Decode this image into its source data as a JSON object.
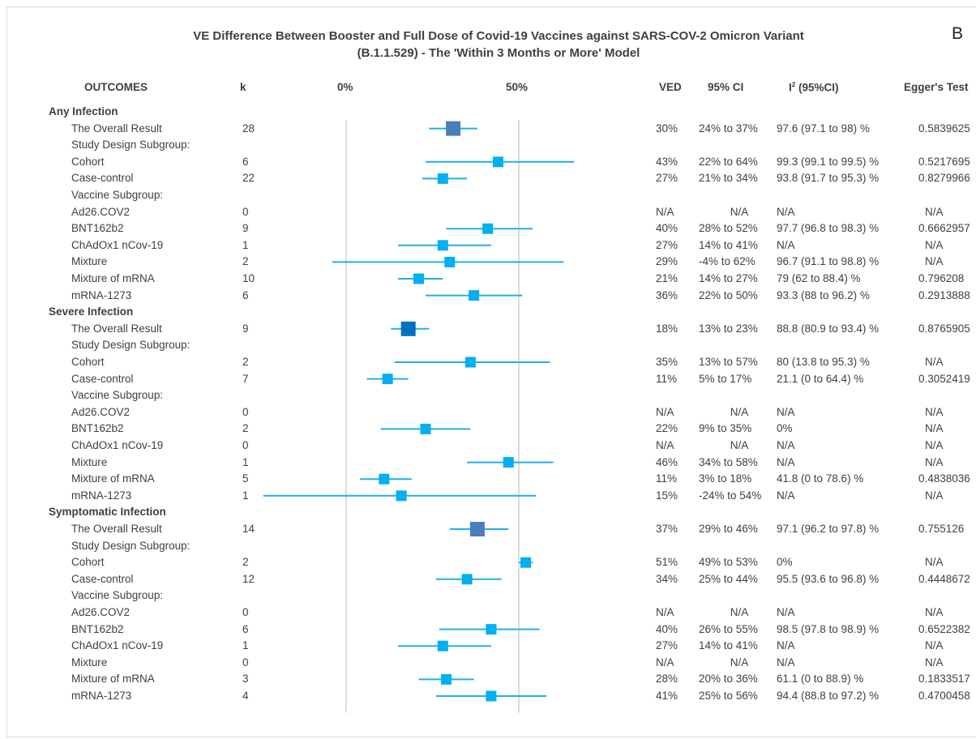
{
  "title_line1": "VE Difference Between Booster and Full Dose of Covid-19 Vaccines against SARS-COV-2 Omicron Variant",
  "title_line2": "(B.1.1.529) - The 'Within 3 Months or More' Model",
  "panel_letter": "B",
  "headers": {
    "outcomes": "OUTCOMES",
    "k": "k",
    "tick0": "0%",
    "tick50": "50%",
    "ved": "VED",
    "ci": "95% CI",
    "i2_prefix": "I",
    "i2_sup": "2",
    "i2_suffix": " (95%CI)",
    "egger": "Egger's Test"
  },
  "colors": {
    "overall_any": "#4a7ebb",
    "overall_severe": "#0070c0",
    "overall_symptomatic": "#4a7ebb",
    "subgroup": "#00b0f0",
    "line": "#1fb0ec",
    "refline": "#d0d0d0"
  },
  "chart_data": {
    "type": "forest",
    "xlim": [
      -48,
      60
    ],
    "reference_lines": [
      0,
      50
    ],
    "rows": [
      {
        "type": "group",
        "label": "Any Infection"
      },
      {
        "type": "item",
        "label": "The Overall Result",
        "k": "28",
        "est": 31,
        "lo": 24,
        "hi": 38,
        "ved": "30%",
        "ci": "24% to 37%",
        "i2": "97.6 (97.1 to 98) %",
        "egger": "0.5839625",
        "overall": "any"
      },
      {
        "type": "sub",
        "label": "Study Design Subgroup:"
      },
      {
        "type": "item",
        "label": "Cohort",
        "k": "6",
        "est": 44,
        "lo": 23,
        "hi": 66,
        "ved": "43%",
        "ci": "22% to 64%",
        "i2": "99.3 (99.1 to 99.5) %",
        "egger": "0.5217695"
      },
      {
        "type": "item",
        "label": "Case-control",
        "k": "22",
        "est": 28,
        "lo": 22,
        "hi": 35,
        "ved": "27%",
        "ci": "21% to 34%",
        "i2": "93.8 (91.7 to 95.3) %",
        "egger": "0.8279966"
      },
      {
        "type": "sub",
        "label": "Vaccine Subgroup:"
      },
      {
        "type": "item",
        "label": "Ad26.COV2",
        "k": "0",
        "ved": "N/A",
        "ci": "N/A",
        "i2": "N/A",
        "egger": "N/A"
      },
      {
        "type": "item",
        "label": "BNT162b2",
        "k": "9",
        "est": 41,
        "lo": 29,
        "hi": 54,
        "ved": "40%",
        "ci": "28% to 52%",
        "i2": "97.7 (96.8 to 98.3) %",
        "egger": "0.6662957"
      },
      {
        "type": "item",
        "label": "ChAdOx1 nCov-19",
        "k": "1",
        "est": 28,
        "lo": 15,
        "hi": 42,
        "ved": "27%",
        "ci": "14% to 41%",
        "i2": "N/A",
        "egger": "N/A"
      },
      {
        "type": "item",
        "label": "Mixture",
        "k": "2",
        "est": 30,
        "lo": -4,
        "hi": 63,
        "ved": "29%",
        "ci": "-4% to 62%",
        "i2": "96.7 (91.1 to 98.8) %",
        "egger": "N/A"
      },
      {
        "type": "item",
        "label": "Mixture of mRNA",
        "k": "10",
        "est": 21,
        "lo": 15,
        "hi": 28,
        "ved": "21%",
        "ci": "14% to 27%",
        "i2": "79 (62 to 88.4) %",
        "egger": "0.796208"
      },
      {
        "type": "item",
        "label": "mRNA-1273",
        "k": "6",
        "est": 37,
        "lo": 23,
        "hi": 51,
        "ved": "36%",
        "ci": "22% to 50%",
        "i2": "93.3 (88 to 96.2) %",
        "egger": "0.2913888"
      },
      {
        "type": "group",
        "label": "Severe Infection"
      },
      {
        "type": "item",
        "label": "The Overall Result",
        "k": "9",
        "est": 18,
        "lo": 13,
        "hi": 24,
        "ved": "18%",
        "ci": "13% to 23%",
        "i2": "88.8 (80.9 to 93.4) %",
        "egger": "0.8765905",
        "overall": "severe"
      },
      {
        "type": "sub",
        "label": "Study Design Subgroup:"
      },
      {
        "type": "item",
        "label": "Cohort",
        "k": "2",
        "est": 36,
        "lo": 14,
        "hi": 59,
        "ved": "35%",
        "ci": "13% to 57%",
        "i2": "80 (13.8 to 95.3) %",
        "egger": "N/A"
      },
      {
        "type": "item",
        "label": "Case-control",
        "k": "7",
        "est": 12,
        "lo": 6,
        "hi": 18,
        "ved": "11%",
        "ci": "5% to 17%",
        "i2": "21.1 (0 to 64.4) %",
        "egger": "0.3052419"
      },
      {
        "type": "sub",
        "label": "Vaccine Subgroup:"
      },
      {
        "type": "item",
        "label": "Ad26.COV2",
        "k": "0",
        "ved": "N/A",
        "ci": "N/A",
        "i2": "N/A",
        "egger": "N/A"
      },
      {
        "type": "item",
        "label": "BNT162b2",
        "k": "2",
        "est": 23,
        "lo": 10,
        "hi": 36,
        "ved": "22%",
        "ci": "9% to 35%",
        "i2": "0%",
        "egger": "N/A"
      },
      {
        "type": "item",
        "label": "ChAdOx1 nCov-19",
        "k": "0",
        "ved": "N/A",
        "ci": "N/A",
        "i2": "N/A",
        "egger": "N/A"
      },
      {
        "type": "item",
        "label": "Mixture",
        "k": "1",
        "est": 47,
        "lo": 35,
        "hi": 60,
        "ved": "46%",
        "ci": "34% to 58%",
        "i2": "N/A",
        "egger": "N/A"
      },
      {
        "type": "item",
        "label": "Mixture of mRNA",
        "k": "5",
        "est": 11,
        "lo": 4,
        "hi": 19,
        "ved": "11%",
        "ci": "3% to 18%",
        "i2": "41.8 (0 to 78.6) %",
        "egger": "0.4838036"
      },
      {
        "type": "item",
        "label": "mRNA-1273",
        "k": "1",
        "est": 16,
        "lo": -24,
        "hi": 55,
        "ved": "15%",
        "ci": "-24% to 54%",
        "i2": "N/A",
        "egger": "N/A"
      },
      {
        "type": "group",
        "label": "Symptomatic Infection"
      },
      {
        "type": "item",
        "label": "The Overall Result",
        "k": "14",
        "est": 38,
        "lo": 30,
        "hi": 47,
        "ved": "37%",
        "ci": "29% to 46%",
        "i2": "97.1 (96.2 to 97.8) %",
        "egger": "0.755126",
        "overall": "symptomatic"
      },
      {
        "type": "sub",
        "label": "Study Design Subgroup:"
      },
      {
        "type": "item",
        "label": "Cohort",
        "k": "2",
        "est": 52,
        "lo": 50,
        "hi": 54,
        "ved": "51%",
        "ci": "49% to 53%",
        "i2": "0%",
        "egger": "N/A"
      },
      {
        "type": "item",
        "label": "Case-control",
        "k": "12",
        "est": 35,
        "lo": 26,
        "hi": 45,
        "ved": "34%",
        "ci": "25% to 44%",
        "i2": "95.5 (93.6 to 96.8) %",
        "egger": "0.4448672"
      },
      {
        "type": "sub",
        "label": "Vaccine Subgroup:"
      },
      {
        "type": "item",
        "label": "Ad26.COV2",
        "k": "0",
        "ved": "N/A",
        "ci": "N/A",
        "i2": "N/A",
        "egger": "N/A"
      },
      {
        "type": "item",
        "label": "BNT162b2",
        "k": "6",
        "est": 42,
        "lo": 27,
        "hi": 56,
        "ved": "40%",
        "ci": "26% to 55%",
        "i2": "98.5 (97.8 to 98.9) %",
        "egger": "0.6522382"
      },
      {
        "type": "item",
        "label": "ChAdOx1 nCov-19",
        "k": "1",
        "est": 28,
        "lo": 15,
        "hi": 42,
        "ved": "27%",
        "ci": "14% to 41%",
        "i2": "N/A",
        "egger": "N/A"
      },
      {
        "type": "item",
        "label": "Mixture",
        "k": "0",
        "ved": "N/A",
        "ci": "N/A",
        "i2": "N/A",
        "egger": "N/A"
      },
      {
        "type": "item",
        "label": "Mixture of mRNA",
        "k": "3",
        "est": 29,
        "lo": 21,
        "hi": 37,
        "ved": "28%",
        "ci": "20% to 36%",
        "i2": "61.1 (0 to 88.9) %",
        "egger": "0.1833517"
      },
      {
        "type": "item",
        "label": "mRNA-1273",
        "k": "4",
        "est": 42,
        "lo": 26,
        "hi": 58,
        "ved": "41%",
        "ci": "25% to 56%",
        "i2": "94.4 (88.8 to 97.2) %",
        "egger": "0.4700458"
      }
    ]
  }
}
